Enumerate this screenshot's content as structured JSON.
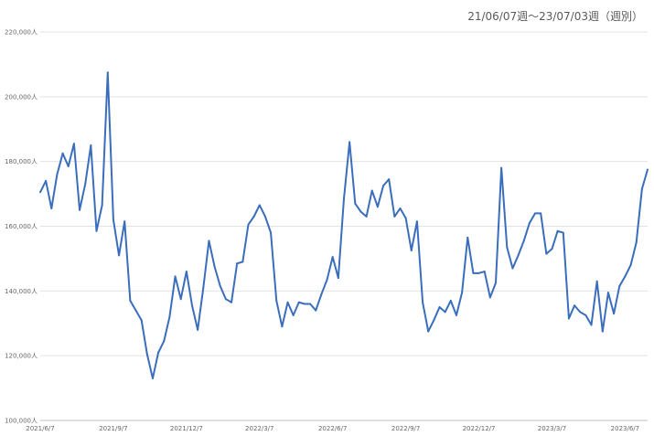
{
  "chart_data": {
    "type": "line",
    "title": "21/06/07週～23/07/03週（週別）",
    "xlabel": "",
    "ylabel": "",
    "ylim": [
      100000,
      220000
    ],
    "y_ticks": [
      "100,000人",
      "120,000人",
      "140,000人",
      "160,000人",
      "180,000人",
      "200,000人",
      "220,000人"
    ],
    "x_ticks": [
      "2021/6/7",
      "2021/9/7",
      "2021/12/7",
      "2022/3/7",
      "2022/6/7",
      "2022/9/7",
      "2022/12/7",
      "2023/3/7",
      "2023/6/7"
    ],
    "grid": true,
    "color": "#3a6ebc",
    "series": [
      {
        "name": "",
        "values": [
          170500,
          174000,
          165500,
          176000,
          182500,
          178500,
          185500,
          165000,
          173000,
          185000,
          158500,
          166500,
          207500,
          162000,
          151000,
          161500,
          137000,
          134000,
          131000,
          120500,
          113000,
          121000,
          124500,
          132000,
          144500,
          137500,
          146000,
          135500,
          128000,
          141000,
          155500,
          147500,
          141500,
          137500,
          136500,
          148500,
          149000,
          160500,
          163000,
          166500,
          163000,
          158000,
          137000,
          129000,
          136500,
          132500,
          136500,
          136000,
          136000,
          134000,
          139000,
          143500,
          150500,
          144000,
          168500,
          186000,
          167000,
          164500,
          163000,
          171000,
          166000,
          172500,
          174500,
          163000,
          165500,
          162500,
          152500,
          161500,
          136500,
          127500,
          131000,
          135000,
          133500,
          137000,
          132500,
          139500,
          156500,
          145500,
          145500,
          146000,
          138000,
          142500,
          178000,
          153500,
          147000,
          151000,
          155500,
          161000,
          164000,
          164000,
          151500,
          153000,
          158500,
          158000,
          131500,
          135500,
          133500,
          132500,
          129500,
          143000,
          127500,
          139500,
          133000,
          141500,
          144500,
          148000,
          155000,
          171500,
          177500
        ]
      }
    ]
  }
}
